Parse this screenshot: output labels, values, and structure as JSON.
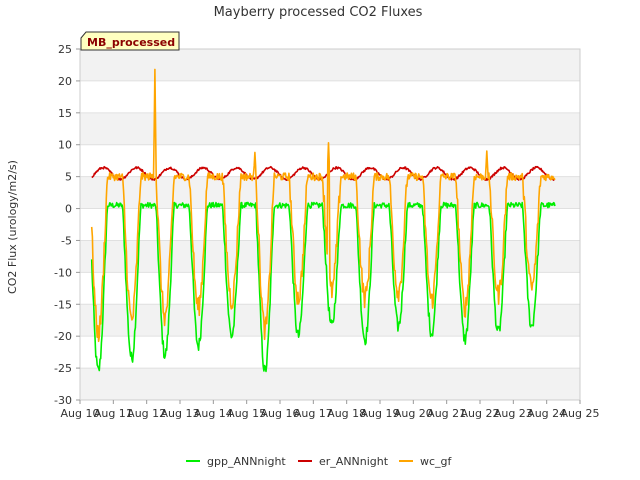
{
  "chart_data": {
    "type": "line",
    "title": "Mayberry processed CO2 Fluxes",
    "xlabel": "",
    "ylabel": "CO2 Flux (urology/m2/s)",
    "ylim": [
      -30,
      25
    ],
    "yticks": [
      -30,
      -25,
      -20,
      -15,
      -10,
      -5,
      0,
      5,
      10,
      15,
      20,
      25
    ],
    "x_range_days": [
      10,
      25
    ],
    "x_ticks": [
      {
        "day": 10,
        "label": "Aug 10"
      },
      {
        "day": 11,
        "label": "Aug 11"
      },
      {
        "day": 12,
        "label": "Aug 12"
      },
      {
        "day": 13,
        "label": "Aug 13"
      },
      {
        "day": 14,
        "label": "Aug 14"
      },
      {
        "day": 15,
        "label": "Aug 15"
      },
      {
        "day": 16,
        "label": "Aug 16"
      },
      {
        "day": 17,
        "label": "Aug 17"
      },
      {
        "day": 18,
        "label": "Aug 18"
      },
      {
        "day": 19,
        "label": "Aug 19"
      },
      {
        "day": 20,
        "label": "Aug 20"
      },
      {
        "day": 21,
        "label": "Aug 21"
      },
      {
        "day": 22,
        "label": "Aug 22"
      },
      {
        "day": 23,
        "label": "Aug 23"
      },
      {
        "day": 24,
        "label": "Aug 24"
      },
      {
        "day": 25,
        "label": "Aug 25"
      }
    ],
    "data_start_day": 10.35,
    "data_end_day": 24.25,
    "series": [
      {
        "name": "gpp_ANNnight",
        "color": "#00ee00",
        "daily_min": [
          -25.5,
          -23.5,
          -23.0,
          -21.5,
          -20.0,
          -25.5,
          -20.0,
          -18.5,
          -20.5,
          -18.5,
          -19.5,
          -20.5,
          -19.5,
          -18.5
        ],
        "daytime_baseline": 0.5
      },
      {
        "name": "er_ANNnight",
        "color": "#cc0000",
        "baseline": 5.5,
        "amplitude": 0.9
      },
      {
        "name": "wc_gf",
        "color": "#ffa500",
        "daily_min": [
          -19.5,
          -17.5,
          -17.0,
          -15.5,
          -14.5,
          -19.0,
          -14.0,
          -13.0,
          -14.0,
          -13.0,
          -14.5,
          -15.5,
          -13.5,
          -12.5
        ],
        "daytime_baseline": 5.0,
        "spikes": [
          {
            "day": 12.25,
            "value": 21.8
          },
          {
            "day": 15.25,
            "value": 8.8
          },
          {
            "day": 17.45,
            "value": 10.3
          },
          {
            "day": 22.2,
            "value": 9.0
          }
        ]
      }
    ],
    "legend_position": "bottom",
    "grid": true,
    "annotation": "MB_processed"
  }
}
